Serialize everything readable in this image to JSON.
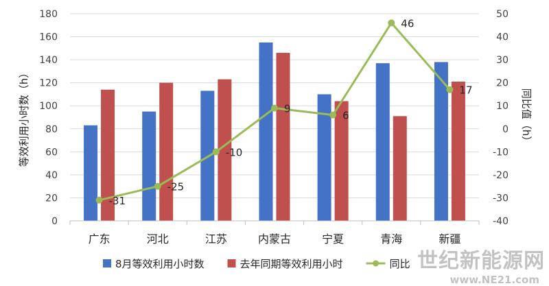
{
  "chart_data": {
    "type": "bar",
    "categories": [
      "广东",
      "河北",
      "江苏",
      "内蒙古",
      "宁夏",
      "青海",
      "新疆"
    ],
    "series": [
      {
        "name": "8月等效利用小时数",
        "type": "bar",
        "axis": "left",
        "color": "#4472C4",
        "values": [
          83,
          95,
          113,
          155,
          110,
          137,
          138
        ]
      },
      {
        "name": "去年同期等效利用小时",
        "type": "bar",
        "axis": "left",
        "color": "#C0504D",
        "values": [
          114,
          120,
          123,
          146,
          104,
          91,
          121
        ]
      },
      {
        "name": "同比",
        "type": "line",
        "axis": "right",
        "color": "#9BBB59",
        "values": [
          -31,
          -25,
          -10,
          9,
          6,
          46,
          17
        ],
        "labels": [
          "-31",
          "-25",
          "-10",
          "9",
          "6",
          "46",
          "17"
        ]
      }
    ],
    "ylabel": "等效利用小时数（h）",
    "y2label": "同比值（h）",
    "ylim": [
      0,
      180
    ],
    "y2lim": [
      -40,
      50
    ],
    "yticks": [
      "0",
      "20",
      "40",
      "60",
      "80",
      "100",
      "120",
      "140",
      "160",
      "180"
    ],
    "y2ticks": [
      "-40",
      "-30",
      "-20",
      "-10",
      "0",
      "10",
      "20",
      "30",
      "40",
      "50"
    ],
    "grid": true,
    "legend": "bottom"
  },
  "watermark": {
    "main": "世纪新能源网",
    "sub": "www.NE21.com"
  }
}
